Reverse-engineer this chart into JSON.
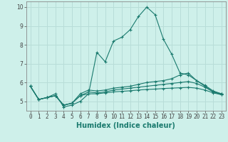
{
  "xlabel": "Humidex (Indice chaleur)",
  "x": [
    0,
    1,
    2,
    3,
    4,
    5,
    6,
    7,
    8,
    9,
    10,
    11,
    12,
    13,
    14,
    15,
    16,
    17,
    18,
    19,
    20,
    21,
    22,
    23
  ],
  "lines": [
    [
      5.8,
      5.1,
      5.2,
      5.4,
      4.7,
      4.8,
      5.0,
      5.4,
      7.6,
      7.1,
      8.2,
      8.4,
      8.8,
      9.5,
      10.0,
      9.6,
      8.3,
      7.5,
      6.5,
      6.4,
      6.1,
      5.8,
      5.5,
      5.4
    ],
    [
      5.8,
      5.1,
      5.2,
      5.3,
      4.8,
      4.9,
      5.4,
      5.6,
      5.55,
      5.6,
      5.7,
      5.75,
      5.8,
      5.9,
      6.0,
      6.05,
      6.1,
      6.2,
      6.4,
      6.5,
      6.1,
      5.85,
      5.55,
      5.4
    ],
    [
      5.8,
      5.1,
      5.2,
      5.3,
      4.8,
      4.9,
      5.3,
      5.5,
      5.45,
      5.5,
      5.6,
      5.65,
      5.7,
      5.75,
      5.8,
      5.85,
      5.9,
      5.95,
      6.0,
      6.05,
      5.95,
      5.75,
      5.5,
      5.35
    ],
    [
      5.8,
      5.1,
      5.2,
      5.3,
      4.8,
      4.9,
      5.3,
      5.4,
      5.4,
      5.45,
      5.5,
      5.53,
      5.56,
      5.6,
      5.63,
      5.65,
      5.68,
      5.7,
      5.72,
      5.74,
      5.7,
      5.6,
      5.45,
      5.35
    ]
  ],
  "line_color": "#1a7a6e",
  "background_color": "#cef0ea",
  "grid_color": "#b8ddd8",
  "ylim": [
    4.5,
    10.3
  ],
  "yticks": [
    5,
    6,
    7,
    8,
    9,
    10
  ],
  "marker": "+",
  "markersize": 3,
  "linewidth": 0.8,
  "tick_fontsize": 5.5,
  "xlabel_fontsize": 7
}
